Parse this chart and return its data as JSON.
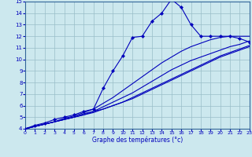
{
  "xlabel": "Graphe des températures (°c)",
  "background_color": "#cce8ee",
  "grid_color": "#99bec8",
  "line_color": "#0000bb",
  "spine_color": "#336699",
  "xlim": [
    0,
    23
  ],
  "ylim": [
    4,
    15
  ],
  "xticks": [
    0,
    1,
    2,
    3,
    4,
    5,
    6,
    7,
    8,
    9,
    10,
    11,
    12,
    13,
    14,
    15,
    16,
    17,
    18,
    19,
    20,
    21,
    22,
    23
  ],
  "yticks": [
    4,
    5,
    6,
    7,
    8,
    9,
    10,
    11,
    12,
    13,
    14,
    15
  ],
  "series_main": [
    4.0,
    4.3,
    4.5,
    4.8,
    5.0,
    5.2,
    5.5,
    5.7,
    7.5,
    9.0,
    10.3,
    11.9,
    12.0,
    13.3,
    14.0,
    15.2,
    14.5,
    13.0,
    12.0,
    12.0,
    12.0,
    12.0,
    11.8,
    11.5
  ],
  "series_a": [
    4.0,
    4.2,
    4.4,
    4.6,
    4.9,
    5.1,
    5.4,
    5.7,
    6.2,
    6.7,
    7.3,
    7.9,
    8.5,
    9.1,
    9.7,
    10.2,
    10.7,
    11.1,
    11.4,
    11.7,
    11.9,
    12.0,
    12.0,
    12.0
  ],
  "series_b": [
    4.0,
    4.2,
    4.4,
    4.6,
    4.8,
    5.0,
    5.3,
    5.5,
    5.9,
    6.3,
    6.7,
    7.1,
    7.6,
    8.1,
    8.6,
    9.1,
    9.5,
    9.9,
    10.2,
    10.5,
    10.8,
    11.1,
    11.3,
    11.6
  ],
  "series_c": [
    4.0,
    4.2,
    4.4,
    4.6,
    4.8,
    5.0,
    5.2,
    5.5,
    5.7,
    6.0,
    6.3,
    6.7,
    7.1,
    7.5,
    7.9,
    8.3,
    8.7,
    9.1,
    9.5,
    9.9,
    10.3,
    10.6,
    10.9,
    11.2
  ],
  "series_d": [
    4.0,
    4.2,
    4.4,
    4.6,
    4.8,
    5.0,
    5.2,
    5.4,
    5.7,
    6.0,
    6.3,
    6.6,
    7.0,
    7.4,
    7.8,
    8.2,
    8.6,
    9.0,
    9.4,
    9.8,
    10.2,
    10.5,
    10.8,
    11.1
  ]
}
